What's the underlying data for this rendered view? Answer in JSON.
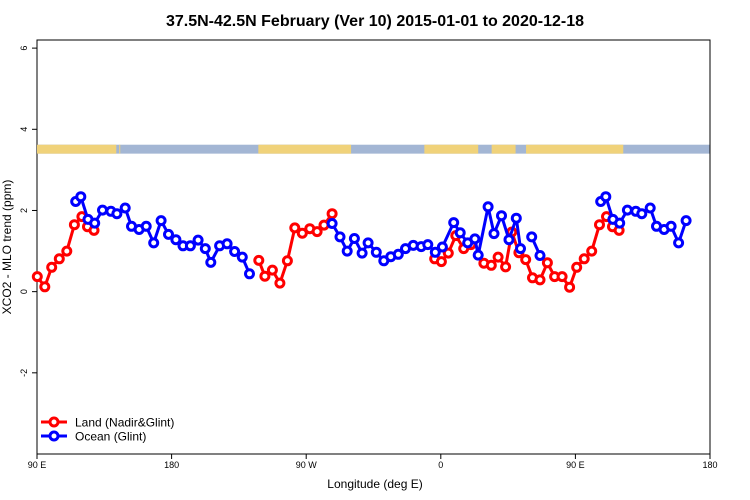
{
  "chart_data": {
    "type": "line",
    "title": "37.5N-42.5N February (Ver 10)   2015-01-01 to 2020-12-18",
    "xlabel": "Longitude (deg E)",
    "ylabel": "XCO2 - MLO trend (ppm)",
    "xlim": [
      90,
      450
    ],
    "ylim": [
      -4,
      6.2
    ],
    "x_ticks": [
      {
        "value": 90,
        "label": "90 E"
      },
      {
        "value": 180,
        "label": "180"
      },
      {
        "value": 270,
        "label": "90 W"
      },
      {
        "value": 360,
        "label": "0"
      },
      {
        "value": 450,
        "label": "90 E"
      },
      {
        "value": 540,
        "label": "180"
      }
    ],
    "x_display_range": [
      90,
      540
    ],
    "y_ticks": [
      {
        "value": -2,
        "label": "-2"
      },
      {
        "value": 0,
        "label": "0"
      },
      {
        "value": 2,
        "label": "2"
      },
      {
        "value": 4,
        "label": "4"
      },
      {
        "value": 6,
        "label": "6"
      }
    ],
    "grid": false,
    "legend_position": "bottom-left",
    "land_ocean_strip": {
      "y_range": [
        3.4,
        3.62
      ],
      "ocean_color": "#a3b6d4",
      "land_color": "#f0d27a",
      "land_lon_ranges": [
        [
          90,
          143
        ],
        [
          145,
          145.5
        ],
        [
          238,
          300
        ],
        [
          349,
          385
        ],
        [
          394,
          410
        ],
        [
          417,
          482
        ]
      ]
    },
    "series": [
      {
        "name": "Land (Nadir&Glint)",
        "color": "#ff0000",
        "points": [
          [
            90.2,
            0.37
          ],
          [
            95.2,
            0.12
          ],
          [
            99.8,
            0.6
          ],
          [
            104.9,
            0.81
          ],
          [
            109.9,
            1.0
          ],
          [
            115.0,
            1.65
          ],
          [
            120.0,
            1.85
          ],
          [
            123.8,
            1.6
          ],
          [
            128.1,
            1.51
          ],
          null,
          [
            238.3,
            0.77
          ],
          [
            242.4,
            0.38
          ],
          [
            247.4,
            0.53
          ],
          [
            252.4,
            0.21
          ],
          [
            257.4,
            0.76
          ],
          [
            262.4,
            1.57
          ],
          [
            267.4,
            1.44
          ],
          [
            272.4,
            1.55
          ],
          [
            277.3,
            1.48
          ],
          [
            281.9,
            1.64
          ],
          [
            287.3,
            1.92
          ],
          null,
          [
            355.9,
            0.81
          ],
          [
            360.4,
            0.74
          ],
          [
            365.0,
            0.95
          ],
          [
            370.0,
            1.38
          ],
          [
            375.3,
            1.06
          ],
          [
            380.1,
            1.16
          ],
          null,
          [
            388.8,
            0.7
          ],
          [
            393.8,
            0.65
          ],
          [
            398.3,
            0.85
          ],
          [
            403.3,
            0.61
          ],
          [
            407.5,
            1.47
          ],
          [
            412.2,
            0.96
          ],
          [
            416.8,
            0.79
          ],
          [
            421.3,
            0.34
          ],
          [
            426.3,
            0.29
          ],
          [
            431.3,
            0.71
          ],
          [
            436.1,
            0.37
          ],
          [
            441.1,
            0.37
          ],
          [
            446.1,
            0.11
          ],
          [
            450.9,
            0.6
          ],
          [
            455.9,
            0.81
          ],
          [
            460.9,
            1.0
          ],
          [
            466.1,
            1.65
          ],
          [
            470.8,
            1.85
          ],
          [
            474.8,
            1.6
          ],
          [
            479.2,
            1.51
          ]
        ]
      },
      {
        "name": "Ocean (Glint)",
        "color": "#0000ff",
        "points": [
          [
            115.9,
            2.22
          ],
          [
            119.3,
            2.34
          ],
          [
            124.1,
            1.78
          ],
          [
            128.6,
            1.69
          ],
          [
            133.8,
            2.01
          ],
          [
            139.4,
            1.98
          ],
          [
            143.4,
            1.92
          ],
          [
            149.0,
            2.06
          ],
          [
            153.2,
            1.61
          ],
          [
            158.3,
            1.53
          ],
          [
            163.0,
            1.61
          ],
          [
            168.0,
            1.2
          ],
          [
            173.0,
            1.75
          ],
          [
            177.9,
            1.41
          ],
          [
            182.9,
            1.28
          ],
          [
            187.6,
            1.13
          ],
          [
            192.6,
            1.13
          ],
          [
            197.7,
            1.27
          ],
          [
            202.5,
            1.06
          ],
          [
            206.2,
            0.72
          ],
          [
            212.1,
            1.13
          ],
          [
            217.1,
            1.18
          ],
          [
            222.1,
            0.99
          ],
          [
            227.3,
            0.85
          ],
          [
            232.1,
            0.44
          ],
          null,
          [
            287.3,
            1.68
          ],
          [
            292.6,
            1.35
          ],
          [
            297.4,
            1.0
          ],
          [
            302.2,
            1.31
          ],
          [
            307.4,
            0.95
          ],
          [
            311.4,
            1.2
          ],
          [
            316.9,
            0.97
          ],
          [
            321.9,
            0.76
          ],
          [
            326.6,
            0.86
          ],
          [
            331.6,
            0.92
          ],
          [
            336.4,
            1.06
          ],
          [
            341.6,
            1.14
          ],
          [
            346.9,
            1.11
          ],
          [
            351.3,
            1.16
          ],
          [
            356.3,
            0.97
          ],
          [
            361.1,
            1.1
          ],
          [
            368.6,
            1.7
          ],
          [
            373.0,
            1.45
          ],
          [
            378.0,
            1.2
          ],
          [
            382.8,
            1.3
          ],
          [
            385.0,
            0.9
          ],
          [
            391.6,
            2.09
          ],
          [
            395.6,
            1.43
          ],
          [
            400.6,
            1.87
          ],
          [
            405.6,
            1.28
          ],
          [
            410.5,
            1.81
          ],
          [
            413.3,
            1.06
          ],
          null,
          [
            426.3,
            0.89
          ],
          [
            420.8,
            1.35
          ],
          null,
          [
            466.9,
            2.22
          ],
          [
            470.3,
            2.34
          ],
          [
            475.1,
            1.78
          ],
          [
            479.6,
            1.69
          ],
          [
            484.8,
            2.01
          ],
          [
            490.4,
            1.98
          ],
          [
            494.4,
            1.92
          ],
          [
            500.0,
            2.06
          ],
          [
            504.2,
            1.61
          ],
          [
            509.3,
            1.53
          ],
          [
            514.0,
            1.61
          ],
          [
            519.0,
            1.2
          ],
          [
            524.0,
            1.75
          ]
        ]
      }
    ]
  }
}
